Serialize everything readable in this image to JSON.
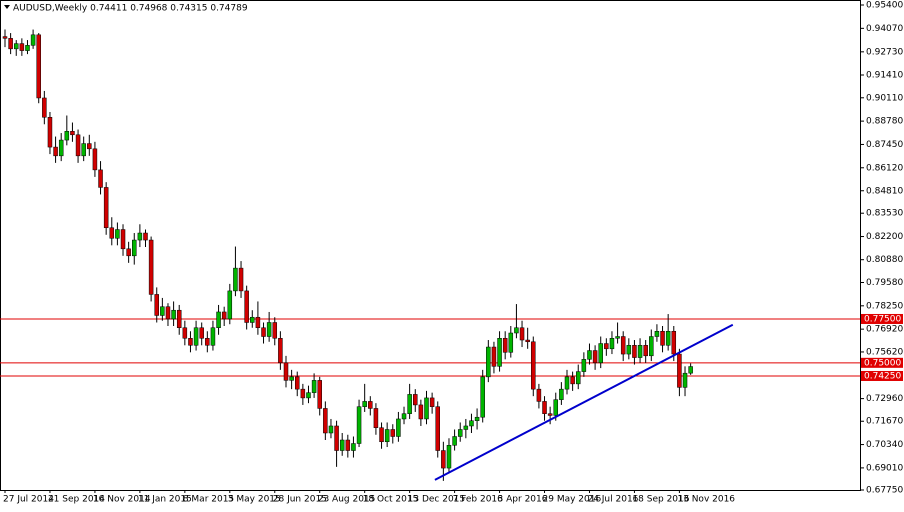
{
  "chart_data": {
    "type": "candlestick",
    "title": "AUDUSD,Weekly  0.74411 0.74968 0.74315 0.74789",
    "up_color": "#00b400",
    "down_color": "#d00000",
    "wick_color": "#000000",
    "ylim": [
      0.6775,
      0.954
    ],
    "yticks": [
      {
        "value": 0.954,
        "label": "0.95400"
      },
      {
        "value": 0.9407,
        "label": "0.94070"
      },
      {
        "value": 0.9273,
        "label": "0.92730"
      },
      {
        "value": 0.9141,
        "label": "0.91410"
      },
      {
        "value": 0.9011,
        "label": "0.90110"
      },
      {
        "value": 0.8878,
        "label": "0.88780"
      },
      {
        "value": 0.8745,
        "label": "0.87450"
      },
      {
        "value": 0.8612,
        "label": "0.86120"
      },
      {
        "value": 0.8481,
        "label": "0.84810"
      },
      {
        "value": 0.8353,
        "label": "0.83530"
      },
      {
        "value": 0.822,
        "label": "0.82200"
      },
      {
        "value": 0.8088,
        "label": "0.80880"
      },
      {
        "value": 0.7958,
        "label": "0.79580"
      },
      {
        "value": 0.7825,
        "label": "0.78250"
      },
      {
        "value": 0.7692,
        "label": "0.76920"
      },
      {
        "value": 0.7562,
        "label": "0.75620"
      },
      {
        "value": 0.7296,
        "label": "0.72960"
      },
      {
        "value": 0.7167,
        "label": "0.71670"
      },
      {
        "value": 0.7034,
        "label": "0.70340"
      },
      {
        "value": 0.6901,
        "label": "0.69010"
      },
      {
        "value": 0.6775,
        "label": "0.67750"
      }
    ],
    "levels": [
      {
        "value": 0.775,
        "label": "0.77500"
      },
      {
        "value": 0.75,
        "label": "0.75000"
      },
      {
        "value": 0.7425,
        "label": "0.74250"
      }
    ],
    "level_color": "#e00000",
    "trendline": {
      "x": [
        76.5,
        129.5
      ],
      "y": [
        0.6833,
        0.7717
      ],
      "color": "#0000cc"
    },
    "categories": [
      "27 Jul 2014",
      null,
      null,
      null,
      null,
      null,
      null,
      null,
      "21 Sep 2014",
      null,
      null,
      null,
      null,
      null,
      null,
      null,
      "16 Nov 2014",
      null,
      null,
      null,
      null,
      null,
      null,
      null,
      "11 Jan 2015",
      null,
      null,
      null,
      null,
      null,
      null,
      null,
      "8 Mar 2015",
      null,
      null,
      null,
      null,
      null,
      null,
      null,
      "3 May 2015",
      null,
      null,
      null,
      null,
      null,
      null,
      null,
      "28 Jun 2015",
      null,
      null,
      null,
      null,
      null,
      null,
      null,
      "23 Aug 2015",
      null,
      null,
      null,
      null,
      null,
      null,
      null,
      "18 Oct 2015",
      null,
      null,
      null,
      null,
      null,
      null,
      null,
      "13 Dec 2015",
      null,
      null,
      null,
      null,
      null,
      null,
      null,
      "7 Feb 2016",
      null,
      null,
      null,
      null,
      null,
      null,
      null,
      "3 Apr 2016",
      null,
      null,
      null,
      null,
      null,
      null,
      null,
      "29 May 2016",
      null,
      null,
      null,
      null,
      null,
      null,
      null,
      "24 Jul 2016",
      null,
      null,
      null,
      null,
      null,
      null,
      null,
      "18 Sep 2016",
      null,
      null,
      null,
      null,
      null,
      null,
      null,
      "13 Nov 2016",
      null,
      null
    ],
    "ohlc": [
      [
        0.936,
        0.94,
        0.93,
        0.935
      ],
      [
        0.935,
        0.938,
        0.926,
        0.929
      ],
      [
        0.929,
        0.934,
        0.925,
        0.932
      ],
      [
        0.932,
        0.935,
        0.925,
        0.928
      ],
      [
        0.928,
        0.934,
        0.926,
        0.931
      ],
      [
        0.931,
        0.94,
        0.929,
        0.937
      ],
      [
        0.937,
        0.938,
        0.898,
        0.901
      ],
      [
        0.901,
        0.905,
        0.886,
        0.89
      ],
      [
        0.89,
        0.893,
        0.869,
        0.873
      ],
      [
        0.873,
        0.879,
        0.864,
        0.868
      ],
      [
        0.868,
        0.881,
        0.865,
        0.877
      ],
      [
        0.877,
        0.891,
        0.874,
        0.882
      ],
      [
        0.882,
        0.887,
        0.876,
        0.88
      ],
      [
        0.88,
        0.883,
        0.864,
        0.868
      ],
      [
        0.868,
        0.879,
        0.865,
        0.875
      ],
      [
        0.875,
        0.88,
        0.868,
        0.872
      ],
      [
        0.872,
        0.876,
        0.856,
        0.86
      ],
      [
        0.86,
        0.865,
        0.846,
        0.85
      ],
      [
        0.85,
        0.853,
        0.823,
        0.827
      ],
      [
        0.827,
        0.833,
        0.817,
        0.821
      ],
      [
        0.821,
        0.83,
        0.817,
        0.826
      ],
      [
        0.826,
        0.829,
        0.811,
        0.815
      ],
      [
        0.815,
        0.819,
        0.807,
        0.811
      ],
      [
        0.811,
        0.824,
        0.806,
        0.82
      ],
      [
        0.82,
        0.829,
        0.816,
        0.824
      ],
      [
        0.824,
        0.826,
        0.816,
        0.82
      ],
      [
        0.82,
        0.822,
        0.785,
        0.789
      ],
      [
        0.789,
        0.793,
        0.773,
        0.777
      ],
      [
        0.777,
        0.787,
        0.774,
        0.782
      ],
      [
        0.782,
        0.784,
        0.771,
        0.775
      ],
      [
        0.775,
        0.785,
        0.771,
        0.78
      ],
      [
        0.78,
        0.783,
        0.766,
        0.77
      ],
      [
        0.77,
        0.774,
        0.76,
        0.764
      ],
      [
        0.764,
        0.768,
        0.756,
        0.76
      ],
      [
        0.76,
        0.774,
        0.757,
        0.77
      ],
      [
        0.77,
        0.773,
        0.76,
        0.764
      ],
      [
        0.764,
        0.768,
        0.756,
        0.76
      ],
      [
        0.76,
        0.774,
        0.757,
        0.77
      ],
      [
        0.77,
        0.783,
        0.766,
        0.779
      ],
      [
        0.779,
        0.782,
        0.771,
        0.775
      ],
      [
        0.775,
        0.795,
        0.772,
        0.791
      ],
      [
        0.791,
        0.8163,
        0.788,
        0.804
      ],
      [
        0.804,
        0.808,
        0.787,
        0.791
      ],
      [
        0.791,
        0.794,
        0.769,
        0.773
      ],
      [
        0.773,
        0.78,
        0.77,
        0.776
      ],
      [
        0.776,
        0.785,
        0.766,
        0.77
      ],
      [
        0.77,
        0.773,
        0.761,
        0.765
      ],
      [
        0.765,
        0.779,
        0.762,
        0.773
      ],
      [
        0.773,
        0.776,
        0.76,
        0.764
      ],
      [
        0.764,
        0.768,
        0.746,
        0.75
      ],
      [
        0.75,
        0.754,
        0.736,
        0.74
      ],
      [
        0.74,
        0.746,
        0.735,
        0.742
      ],
      [
        0.742,
        0.745,
        0.731,
        0.735
      ],
      [
        0.735,
        0.738,
        0.726,
        0.73
      ],
      [
        0.73,
        0.737,
        0.727,
        0.733
      ],
      [
        0.733,
        0.744,
        0.73,
        0.74
      ],
      [
        0.74,
        0.742,
        0.72,
        0.724
      ],
      [
        0.724,
        0.728,
        0.706,
        0.71
      ],
      [
        0.71,
        0.718,
        0.707,
        0.714
      ],
      [
        0.714,
        0.717,
        0.6907,
        0.7
      ],
      [
        0.7,
        0.71,
        0.697,
        0.706
      ],
      [
        0.706,
        0.709,
        0.696,
        0.7
      ],
      [
        0.7,
        0.708,
        0.696,
        0.704
      ],
      [
        0.704,
        0.729,
        0.702,
        0.725
      ],
      [
        0.725,
        0.738,
        0.722,
        0.728
      ],
      [
        0.728,
        0.731,
        0.72,
        0.724
      ],
      [
        0.724,
        0.727,
        0.709,
        0.713
      ],
      [
        0.713,
        0.716,
        0.701,
        0.705
      ],
      [
        0.705,
        0.716,
        0.702,
        0.712
      ],
      [
        0.712,
        0.715,
        0.704,
        0.708
      ],
      [
        0.708,
        0.722,
        0.705,
        0.718
      ],
      [
        0.718,
        0.725,
        0.715,
        0.721
      ],
      [
        0.721,
        0.738,
        0.718,
        0.732
      ],
      [
        0.732,
        0.735,
        0.722,
        0.726
      ],
      [
        0.726,
        0.729,
        0.714,
        0.718
      ],
      [
        0.718,
        0.734,
        0.715,
        0.73
      ],
      [
        0.73,
        0.733,
        0.721,
        0.725
      ],
      [
        0.725,
        0.728,
        0.696,
        0.7
      ],
      [
        0.7,
        0.705,
        0.6827,
        0.69
      ],
      [
        0.69,
        0.707,
        0.687,
        0.703
      ],
      [
        0.703,
        0.712,
        0.7,
        0.708
      ],
      [
        0.708,
        0.716,
        0.705,
        0.712
      ],
      [
        0.712,
        0.718,
        0.707,
        0.714
      ],
      [
        0.714,
        0.721,
        0.71,
        0.717
      ],
      [
        0.717,
        0.724,
        0.712,
        0.719
      ],
      [
        0.719,
        0.746,
        0.716,
        0.742
      ],
      [
        0.742,
        0.763,
        0.739,
        0.759
      ],
      [
        0.759,
        0.762,
        0.744,
        0.748
      ],
      [
        0.748,
        0.768,
        0.745,
        0.764
      ],
      [
        0.764,
        0.768,
        0.752,
        0.756
      ],
      [
        0.756,
        0.771,
        0.753,
        0.767
      ],
      [
        0.767,
        0.7835,
        0.764,
        0.77
      ],
      [
        0.77,
        0.774,
        0.759,
        0.763
      ],
      [
        0.763,
        0.77,
        0.758,
        0.762
      ],
      [
        0.762,
        0.765,
        0.731,
        0.735
      ],
      [
        0.735,
        0.738,
        0.724,
        0.728
      ],
      [
        0.728,
        0.731,
        0.717,
        0.721
      ],
      [
        0.721,
        0.725,
        0.715,
        0.72
      ],
      [
        0.72,
        0.733,
        0.717,
        0.729
      ],
      [
        0.729,
        0.739,
        0.726,
        0.735
      ],
      [
        0.735,
        0.746,
        0.732,
        0.742
      ],
      [
        0.742,
        0.745,
        0.734,
        0.738
      ],
      [
        0.738,
        0.749,
        0.735,
        0.745
      ],
      [
        0.745,
        0.756,
        0.742,
        0.752
      ],
      [
        0.752,
        0.761,
        0.749,
        0.757
      ],
      [
        0.757,
        0.76,
        0.746,
        0.75
      ],
      [
        0.75,
        0.765,
        0.747,
        0.761
      ],
      [
        0.761,
        0.764,
        0.754,
        0.758
      ],
      [
        0.758,
        0.768,
        0.755,
        0.764
      ],
      [
        0.764,
        0.773,
        0.761,
        0.765
      ],
      [
        0.765,
        0.768,
        0.751,
        0.755
      ],
      [
        0.755,
        0.764,
        0.752,
        0.76
      ],
      [
        0.76,
        0.763,
        0.749,
        0.753
      ],
      [
        0.753,
        0.764,
        0.75,
        0.76
      ],
      [
        0.76,
        0.763,
        0.75,
        0.754
      ],
      [
        0.754,
        0.769,
        0.751,
        0.765
      ],
      [
        0.765,
        0.772,
        0.762,
        0.768
      ],
      [
        0.768,
        0.771,
        0.756,
        0.76
      ],
      [
        0.76,
        0.7778,
        0.757,
        0.768
      ],
      [
        0.768,
        0.771,
        0.751,
        0.755
      ],
      [
        0.755,
        0.758,
        0.731,
        0.736
      ],
      [
        0.736,
        0.748,
        0.731,
        0.7441
      ],
      [
        0.74411,
        0.74968,
        0.74315,
        0.74789
      ]
    ]
  }
}
